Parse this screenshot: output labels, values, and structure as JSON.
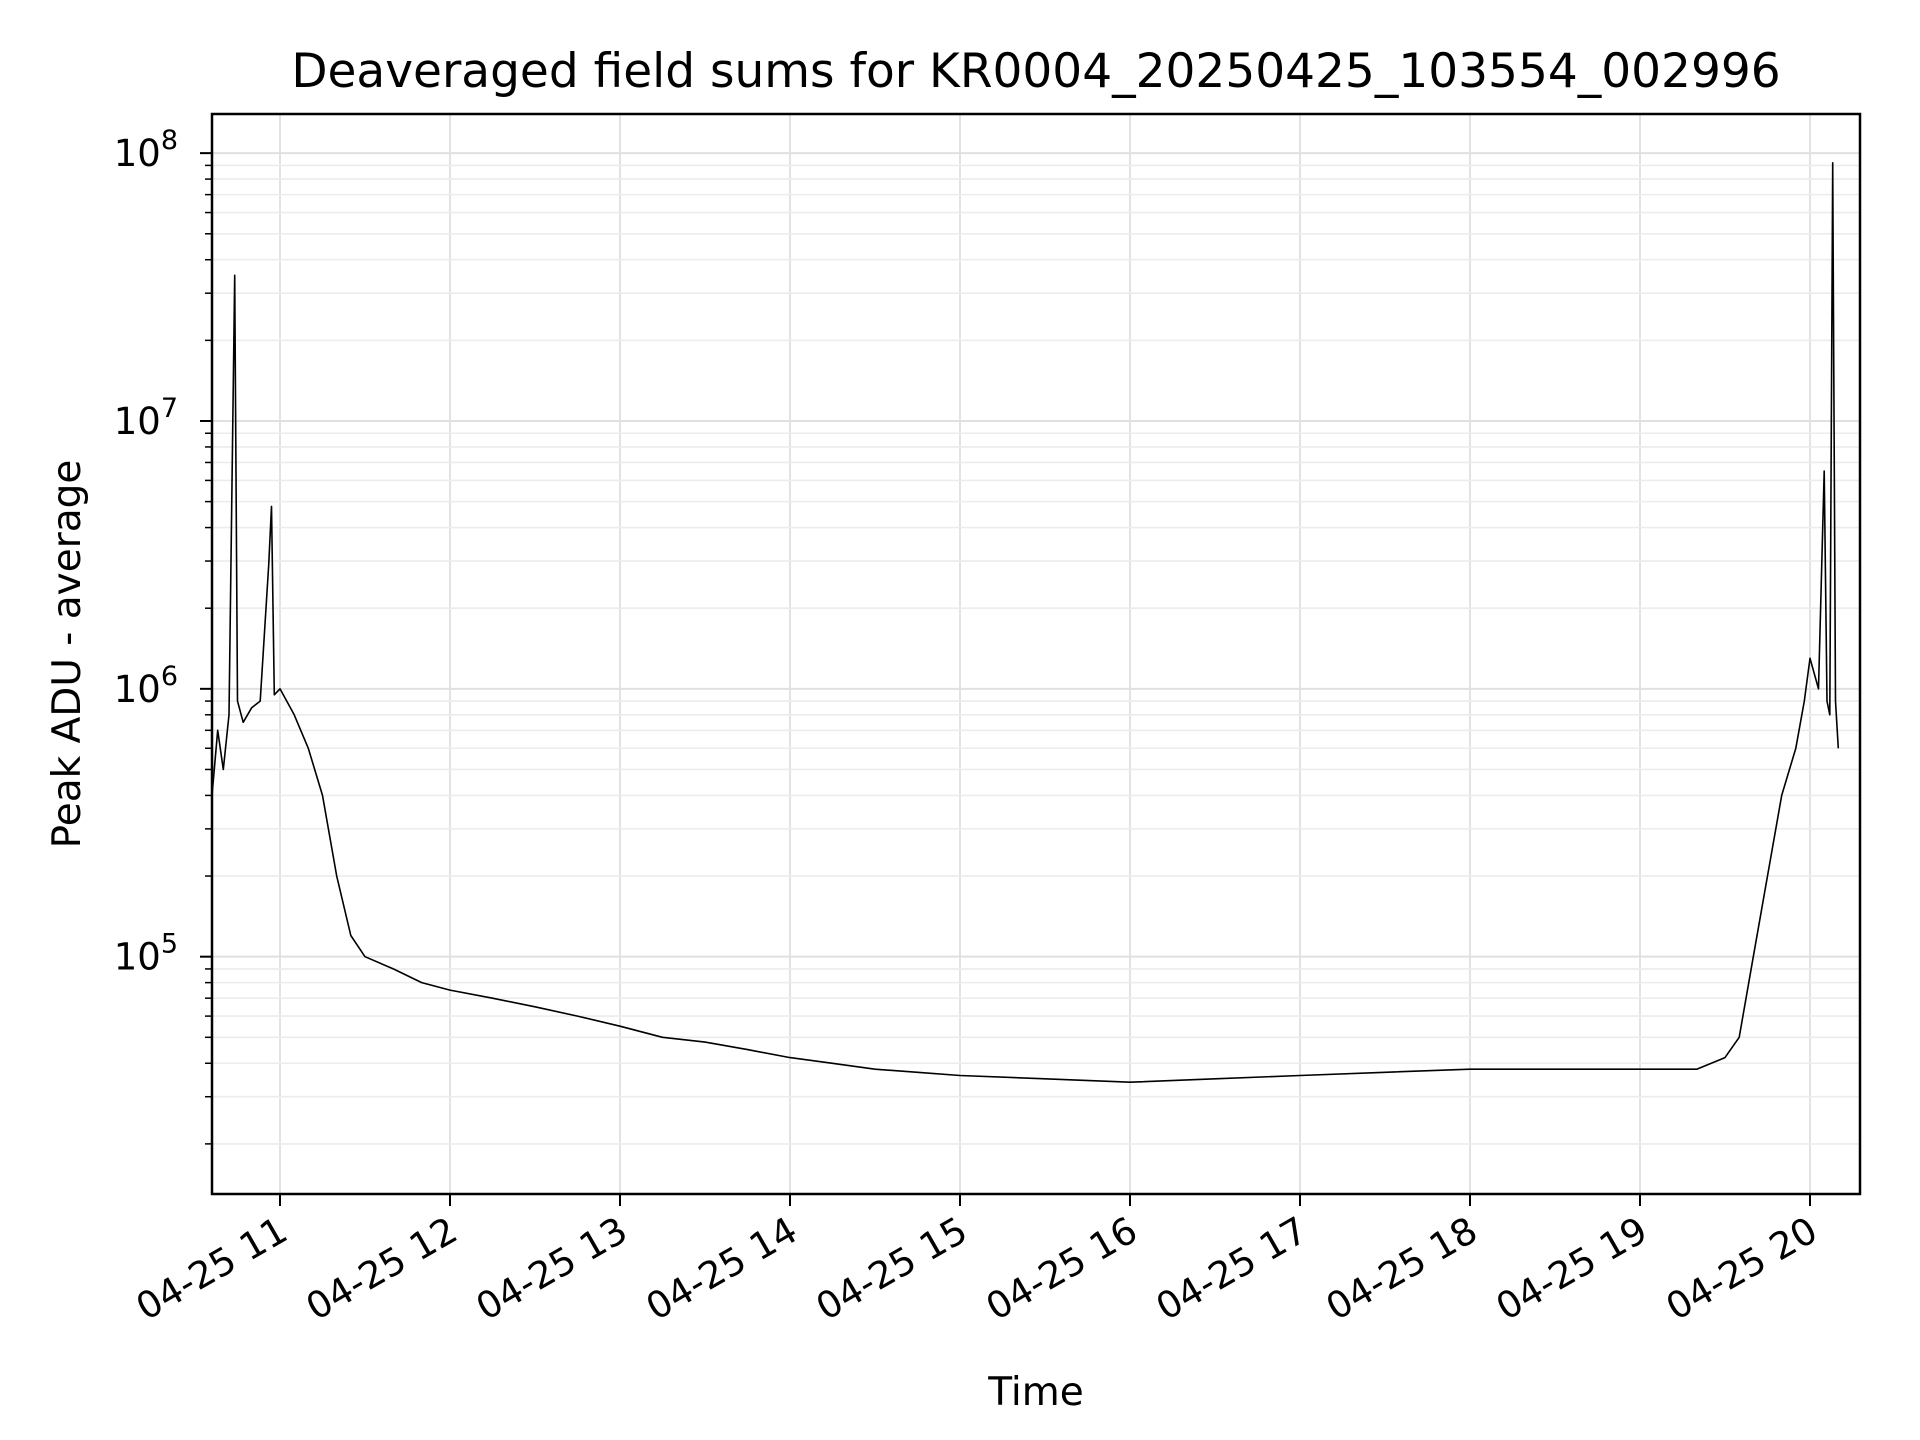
{
  "chart_data": {
    "type": "line",
    "title": "Deaveraged field sums for KR0004_20250425_103554_002996",
    "xlabel": "Time",
    "ylabel": "Peak ADU - average",
    "yscale": "log",
    "grid": true,
    "line_color": "#000000",
    "x_range": [
      "04-25 10:36",
      "04-25 20:10"
    ],
    "ylim": [
      13000,
      140000000
    ],
    "xticks": [
      "04-25 11",
      "04-25 12",
      "04-25 13",
      "04-25 14",
      "04-25 15",
      "04-25 16",
      "04-25 17",
      "04-25 18",
      "04-25 19",
      "04-25 20"
    ],
    "yticks": [
      {
        "base": "10",
        "exp": "5",
        "value": 100000
      },
      {
        "base": "10",
        "exp": "6",
        "value": 1000000
      },
      {
        "base": "10",
        "exp": "7",
        "value": 10000000
      },
      {
        "base": "10",
        "exp": "8",
        "value": 100000000
      }
    ],
    "series": [
      {
        "points": [
          [
            "04-25 10:36",
            400000
          ],
          [
            "04-25 10:38",
            700000
          ],
          [
            "04-25 10:40",
            500000
          ],
          [
            "04-25 10:42",
            800000
          ],
          [
            "04-25 10:44",
            35000000
          ],
          [
            "04-25 10:45",
            900000
          ],
          [
            "04-25 10:47",
            750000
          ],
          [
            "04-25 10:50",
            850000
          ],
          [
            "04-25 10:53",
            900000
          ],
          [
            "04-25 10:56",
            2900000
          ],
          [
            "04-25 10:57",
            4800000
          ],
          [
            "04-25 10:58",
            950000
          ],
          [
            "04-25 11:00",
            1000000
          ],
          [
            "04-25 11:05",
            800000
          ],
          [
            "04-25 11:10",
            600000
          ],
          [
            "04-25 11:15",
            400000
          ],
          [
            "04-25 11:20",
            200000
          ],
          [
            "04-25 11:25",
            120000
          ],
          [
            "04-25 11:30",
            100000
          ],
          [
            "04-25 11:40",
            90000
          ],
          [
            "04-25 11:50",
            80000
          ],
          [
            "04-25 12:00",
            75000
          ],
          [
            "04-25 12:15",
            70000
          ],
          [
            "04-25 12:30",
            65000
          ],
          [
            "04-25 12:45",
            60000
          ],
          [
            "04-25 13:00",
            55000
          ],
          [
            "04-25 13:15",
            50000
          ],
          [
            "04-25 13:30",
            48000
          ],
          [
            "04-25 13:45",
            45000
          ],
          [
            "04-25 14:00",
            42000
          ],
          [
            "04-25 14:15",
            40000
          ],
          [
            "04-25 14:30",
            38000
          ],
          [
            "04-25 14:45",
            37000
          ],
          [
            "04-25 15:00",
            36000
          ],
          [
            "04-25 15:30",
            35000
          ],
          [
            "04-25 16:00",
            34000
          ],
          [
            "04-25 16:30",
            35000
          ],
          [
            "04-25 17:00",
            36000
          ],
          [
            "04-25 17:30",
            37000
          ],
          [
            "04-25 18:00",
            38000
          ],
          [
            "04-25 18:30",
            38000
          ],
          [
            "04-25 19:00",
            38000
          ],
          [
            "04-25 19:20",
            38000
          ],
          [
            "04-25 19:30",
            42000
          ],
          [
            "04-25 19:35",
            50000
          ],
          [
            "04-25 19:40",
            100000
          ],
          [
            "04-25 19:45",
            200000
          ],
          [
            "04-25 19:50",
            400000
          ],
          [
            "04-25 19:55",
            600000
          ],
          [
            "04-25 19:58",
            900000
          ],
          [
            "04-25 20:00",
            1300000
          ],
          [
            "04-25 20:03",
            1000000
          ],
          [
            "04-25 20:05",
            6500000
          ],
          [
            "04-25 20:06",
            900000
          ],
          [
            "04-25 20:07",
            800000
          ],
          [
            "04-25 20:08",
            92000000
          ],
          [
            "04-25 20:09",
            900000
          ],
          [
            "04-25 20:10",
            600000
          ]
        ]
      }
    ]
  }
}
